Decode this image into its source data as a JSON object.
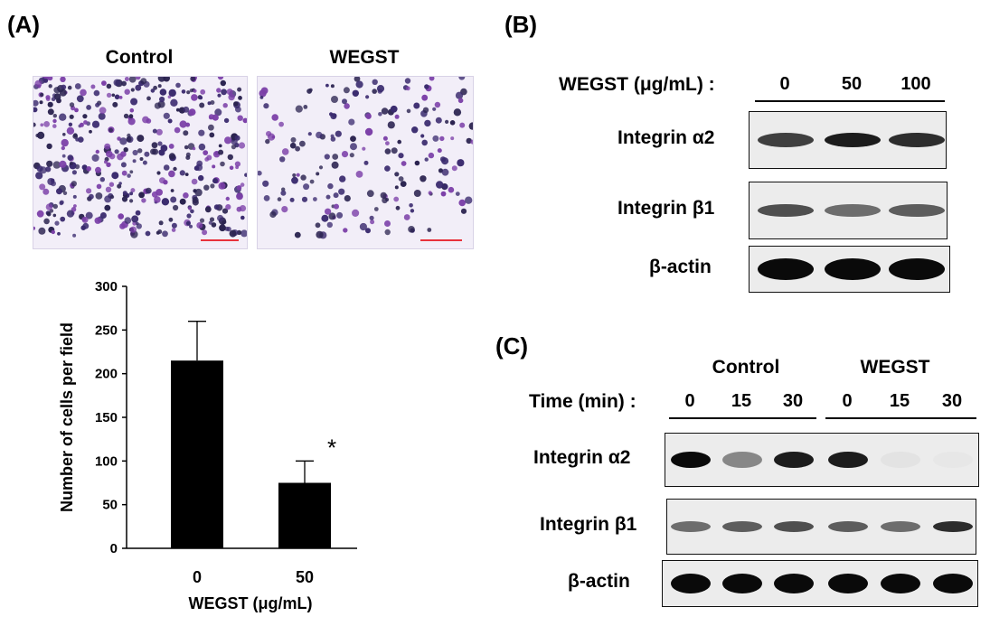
{
  "panels": {
    "A": "(A)",
    "B": "(B)",
    "C": "(C)"
  },
  "panel_a": {
    "images": [
      {
        "title": "Control",
        "density": 420
      },
      {
        "title": "WEGST",
        "density": 190
      }
    ],
    "chart_data": {
      "type": "bar",
      "categories": [
        "0",
        "50"
      ],
      "values": [
        215,
        75
      ],
      "errors": [
        45,
        25
      ],
      "significance": [
        "",
        "*"
      ],
      "xlabel": "WEGST (μg/mL)",
      "ylabel": "Number of  cells per field",
      "ylim": [
        0,
        300
      ],
      "yticks": [
        "0",
        "50",
        "100",
        "150",
        "200",
        "250",
        "300"
      ],
      "grid": false,
      "bar_color": "#000000"
    }
  },
  "panel_b": {
    "header": "WEGST (μg/mL) :",
    "lanes": [
      "0",
      "50",
      "100"
    ],
    "rows": [
      {
        "label": "Integrin α2",
        "intensity": [
          0.85,
          0.95,
          0.9
        ]
      },
      {
        "label": "Integrin β1",
        "intensity": [
          0.8,
          0.7,
          0.75
        ]
      },
      {
        "label": "β-actin",
        "intensity": [
          1.0,
          1.0,
          1.0
        ]
      }
    ]
  },
  "panel_c": {
    "groups": [
      "Control",
      "WEGST"
    ],
    "header": "Time (min) :",
    "lanes": [
      "0",
      "15",
      "30",
      "0",
      "15",
      "30"
    ],
    "rows": [
      {
        "label": "Integrin α2",
        "intensity": [
          1.0,
          0.6,
          0.95,
          0.95,
          0.1,
          0.05
        ]
      },
      {
        "label": "Integrin β1",
        "intensity": [
          0.7,
          0.75,
          0.8,
          0.75,
          0.7,
          0.9
        ]
      },
      {
        "label": "β-actin",
        "intensity": [
          1.0,
          1.0,
          1.0,
          1.0,
          1.0,
          1.0
        ]
      }
    ]
  }
}
